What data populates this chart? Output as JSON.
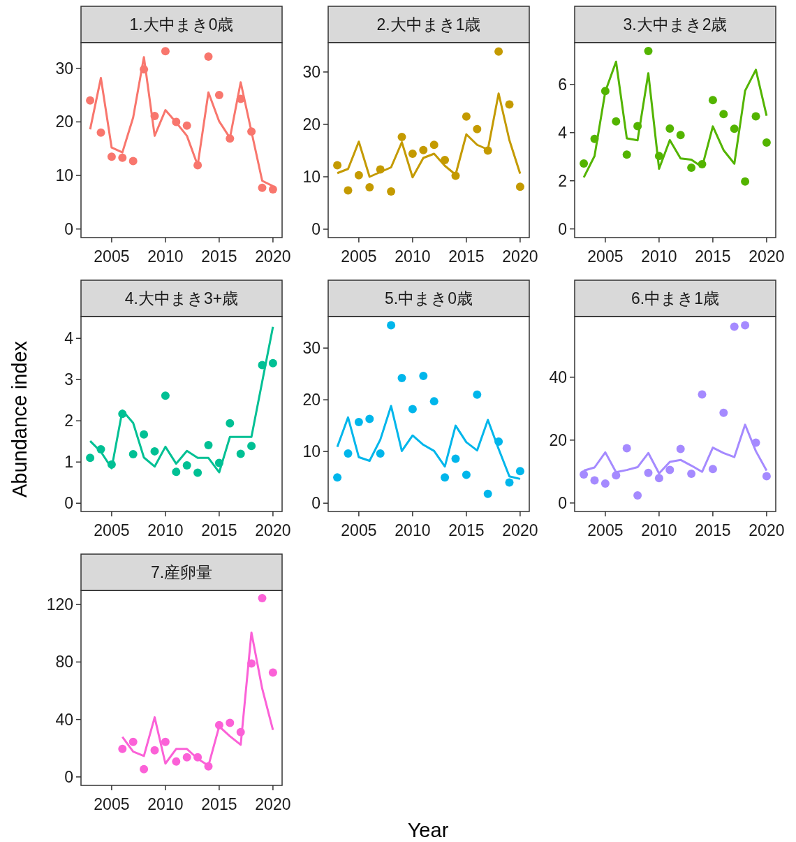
{
  "chart_data": [
    {
      "type": "line",
      "title": "1.大中まき0歳",
      "x": [
        2003,
        2004,
        2005,
        2006,
        2007,
        2008,
        2009,
        2010,
        2011,
        2012,
        2013,
        2014,
        2015,
        2016,
        2017,
        2018,
        2019,
        2020
      ],
      "xlim": [
        2002.15,
        2020.85
      ],
      "xticks": [
        2005,
        2010,
        2015,
        2020
      ],
      "ylim": [
        -1.6,
        34.8
      ],
      "yticks": [
        0,
        10,
        20,
        30
      ],
      "series": [
        {
          "type": "scatter",
          "marker": "circle",
          "color": "#f8766d",
          "values": [
            24.0,
            18.0,
            13.5,
            13.3,
            12.7,
            29.8,
            21.1,
            33.2,
            20.0,
            19.3,
            11.9,
            32.2,
            25.0,
            16.9,
            24.3,
            18.2,
            7.7,
            7.4
          ]
        },
        {
          "type": "line",
          "color": "#f8766d",
          "values": [
            18.6,
            28.2,
            15.2,
            14.3,
            20.8,
            32.1,
            17.4,
            22.2,
            19.9,
            17.4,
            11.9,
            25.5,
            20.1,
            17.0,
            27.4,
            18.2,
            9.0,
            8.0
          ]
        }
      ]
    },
    {
      "type": "line",
      "title": "2.大中まき1歳",
      "x": [
        2003,
        2004,
        2005,
        2006,
        2007,
        2008,
        2009,
        2010,
        2011,
        2012,
        2013,
        2014,
        2015,
        2016,
        2017,
        2018,
        2019,
        2020
      ],
      "xlim": [
        2002.15,
        2020.85
      ],
      "xticks": [
        2005,
        2010,
        2015,
        2020
      ],
      "ylim": [
        -1.6,
        35.6
      ],
      "yticks": [
        0,
        10,
        20,
        30
      ],
      "series": [
        {
          "type": "scatter",
          "marker": "circle",
          "color": "#c49a00",
          "values": [
            12.2,
            7.4,
            10.3,
            8.0,
            11.4,
            7.2,
            17.6,
            14.4,
            15.1,
            16.1,
            13.2,
            10.2,
            21.5,
            19.1,
            15.0,
            33.9,
            23.8,
            8.1
          ]
        },
        {
          "type": "line",
          "color": "#c49a00",
          "values": [
            10.7,
            11.5,
            16.7,
            10.0,
            10.9,
            11.8,
            16.6,
            9.9,
            13.6,
            14.4,
            12.1,
            10.4,
            18.1,
            16.1,
            15.2,
            25.9,
            17.0,
            10.6
          ]
        }
      ]
    },
    {
      "type": "line",
      "title": "3.大中まき2歳",
      "x": [
        2003,
        2004,
        2005,
        2006,
        2007,
        2008,
        2009,
        2010,
        2011,
        2012,
        2013,
        2014,
        2015,
        2016,
        2017,
        2018,
        2019,
        2020
      ],
      "xlim": [
        2002.15,
        2020.85
      ],
      "xticks": [
        2005,
        2010,
        2015,
        2020
      ],
      "ylim": [
        -0.36,
        7.74
      ],
      "yticks": [
        0,
        2,
        4,
        6
      ],
      "series": [
        {
          "type": "scatter",
          "marker": "circle",
          "color": "#53b400",
          "values": [
            2.72,
            3.74,
            5.73,
            4.47,
            3.09,
            4.27,
            7.39,
            3.03,
            4.17,
            3.9,
            2.54,
            2.69,
            5.35,
            4.77,
            4.16,
            1.97,
            4.68,
            3.59
          ]
        },
        {
          "type": "line",
          "color": "#53b400",
          "values": [
            2.14,
            3.03,
            5.71,
            6.95,
            3.76,
            3.68,
            6.47,
            2.5,
            3.69,
            2.93,
            2.88,
            2.57,
            4.26,
            3.27,
            2.71,
            5.74,
            6.61,
            4.7
          ]
        }
      ]
    },
    {
      "type": "line",
      "title": "4.大中まき3+歳",
      "ylabel": "Abundance index",
      "x": [
        2003,
        2004,
        2005,
        2006,
        2007,
        2008,
        2009,
        2010,
        2011,
        2012,
        2013,
        2014,
        2015,
        2016,
        2017,
        2018,
        2019,
        2020
      ],
      "xlim": [
        2002.15,
        2020.85
      ],
      "xticks": [
        2005,
        2010,
        2015,
        2020
      ],
      "ylim": [
        -0.2,
        4.53
      ],
      "yticks": [
        0,
        1,
        2,
        3,
        4
      ],
      "series": [
        {
          "type": "scatter",
          "marker": "circle",
          "color": "#00c094",
          "values": [
            1.1,
            1.31,
            0.94,
            2.17,
            1.19,
            1.67,
            1.26,
            2.61,
            0.76,
            0.92,
            0.74,
            1.41,
            0.98,
            1.94,
            1.2,
            1.39,
            3.35,
            3.4
          ]
        },
        {
          "type": "line",
          "color": "#00c094",
          "values": [
            1.51,
            1.25,
            0.85,
            2.25,
            1.95,
            1.11,
            0.89,
            1.37,
            0.96,
            1.27,
            1.1,
            1.1,
            0.75,
            1.61,
            1.61,
            1.61,
            2.95,
            4.28
          ]
        }
      ]
    },
    {
      "type": "line",
      "title": "5.中まき0歳",
      "x": [
        2003,
        2004,
        2005,
        2006,
        2007,
        2008,
        2009,
        2010,
        2011,
        2012,
        2013,
        2014,
        2015,
        2016,
        2017,
        2018,
        2019,
        2020
      ],
      "xlim": [
        2002.15,
        2020.85
      ],
      "xticks": [
        2005,
        2010,
        2015,
        2020
      ],
      "ylim": [
        -1.6,
        36.1
      ],
      "yticks": [
        0,
        10,
        20,
        30
      ],
      "series": [
        {
          "type": "scatter",
          "marker": "circle",
          "color": "#00b6eb",
          "values": [
            5.0,
            9.6,
            15.7,
            16.3,
            9.6,
            34.4,
            24.2,
            18.2,
            24.6,
            19.7,
            5.0,
            8.6,
            5.5,
            21.0,
            1.8,
            11.9,
            4.0,
            6.2
          ]
        },
        {
          "type": "line",
          "color": "#00b6eb",
          "values": [
            10.9,
            16.6,
            8.9,
            8.2,
            12.3,
            18.8,
            10.1,
            13.1,
            11.3,
            10.1,
            7.1,
            15.0,
            11.8,
            10.2,
            16.1,
            10.5,
            5.2,
            4.7
          ]
        }
      ]
    },
    {
      "type": "line",
      "title": "6.中まき1歳",
      "x": [
        2003,
        2004,
        2005,
        2006,
        2007,
        2008,
        2009,
        2010,
        2011,
        2012,
        2013,
        2014,
        2015,
        2016,
        2017,
        2018,
        2019,
        2020
      ],
      "xlim": [
        2002.15,
        2020.85
      ],
      "xticks": [
        2005,
        2010,
        2015,
        2020
      ],
      "ylim": [
        -2.7,
        59.3
      ],
      "yticks": [
        0,
        20,
        40
      ],
      "series": [
        {
          "type": "scatter",
          "marker": "circle",
          "color": "#a58aff",
          "values": [
            9.1,
            7.2,
            6.2,
            8.8,
            17.4,
            2.4,
            9.6,
            7.9,
            10.5,
            17.2,
            9.3,
            34.5,
            10.8,
            28.7,
            56.1,
            56.5,
            19.2,
            8.5
          ]
        },
        {
          "type": "line",
          "color": "#a58aff",
          "values": [
            10.3,
            11.3,
            16.1,
            9.8,
            10.5,
            11.4,
            15.9,
            9.4,
            13.1,
            13.7,
            11.9,
            9.9,
            17.6,
            15.9,
            14.6,
            24.9,
            16.5,
            10.3
          ]
        }
      ]
    },
    {
      "type": "line",
      "title": "7.産卵量",
      "xlabel": "Year",
      "x": [
        2006,
        2007,
        2008,
        2009,
        2010,
        2011,
        2012,
        2013,
        2014,
        2015,
        2016,
        2017,
        2018,
        2019,
        2020
      ],
      "xlim": [
        2002.15,
        2020.85
      ],
      "xticks": [
        2005,
        2010,
        2015,
        2020
      ],
      "ylim": [
        -5.9,
        129.8
      ],
      "yticks": [
        0,
        40,
        80,
        120
      ],
      "series": [
        {
          "type": "scatter",
          "marker": "circle",
          "color": "#fb61d7",
          "values": [
            19.5,
            24.4,
            5.4,
            18.5,
            24.4,
            10.7,
            13.7,
            13.7,
            7.3,
            36.1,
            37.6,
            31.2,
            79.0,
            124.4,
            72.7
          ]
        },
        {
          "type": "line",
          "color": "#fb61d7",
          "values": [
            27.8,
            17.6,
            14.6,
            41.5,
            9.3,
            19.5,
            19.5,
            12.7,
            7.8,
            35.1,
            28.3,
            22.4,
            100.5,
            61.5,
            32.7
          ]
        }
      ]
    }
  ]
}
